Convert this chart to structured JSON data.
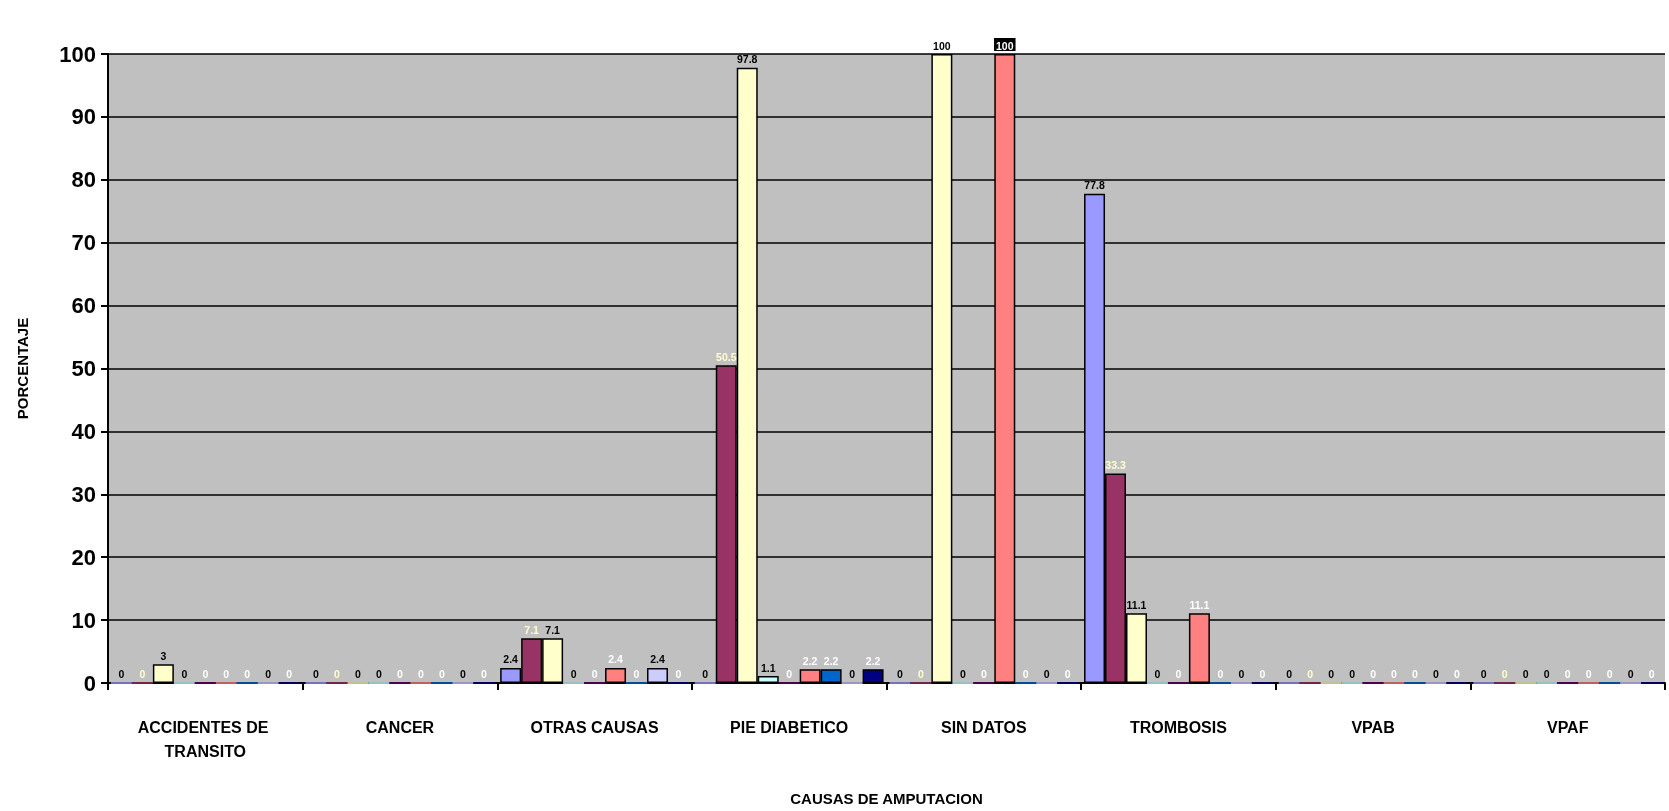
{
  "chart_data": {
    "type": "bar",
    "xlabel": "CAUSAS DE AMPUTACION",
    "ylabel": "PORCENTAJE",
    "categories": [
      "ACCIDENTES DE TRANSITO",
      "CANCER",
      "OTRAS CAUSAS",
      "PIE DIABETICO",
      "SIN DATOS",
      "TROMBOSIS",
      "VPAB",
      "VPAF"
    ],
    "series": [
      {
        "color": "#9999ff",
        "values": [
          0,
          0,
          2.4,
          0,
          0,
          77.8,
          0,
          0
        ]
      },
      {
        "color": "#993366",
        "values": [
          0,
          0,
          7.1,
          50.5,
          0,
          33.3,
          0,
          0
        ]
      },
      {
        "color": "#ffffcc",
        "values": [
          3,
          0,
          7.1,
          97.8,
          100,
          11.1,
          0,
          0
        ]
      },
      {
        "color": "#ccffff",
        "values": [
          0,
          0,
          0,
          1.1,
          0,
          0,
          0,
          0
        ]
      },
      {
        "color": "#660066",
        "values": [
          0,
          0,
          0,
          0,
          0,
          0,
          0,
          0
        ]
      },
      {
        "color": "#ff8080",
        "values": [
          0,
          0,
          2.4,
          2.2,
          100,
          11.1,
          0,
          0
        ]
      },
      {
        "color": "#0066cc",
        "values": [
          0,
          0,
          0,
          2.2,
          0,
          0,
          0,
          0
        ]
      },
      {
        "color": "#ccccff",
        "values": [
          0,
          0,
          2.4,
          0,
          0,
          0,
          0,
          0
        ]
      },
      {
        "color": "#000080",
        "values": [
          0,
          0,
          0,
          2.2,
          0,
          0,
          0,
          0
        ]
      }
    ],
    "ylim": [
      0,
      100
    ],
    "yticks": [
      0,
      10,
      20,
      30,
      40,
      50,
      60,
      70,
      80,
      90,
      100
    ],
    "grid": "y",
    "data_labels": true
  }
}
